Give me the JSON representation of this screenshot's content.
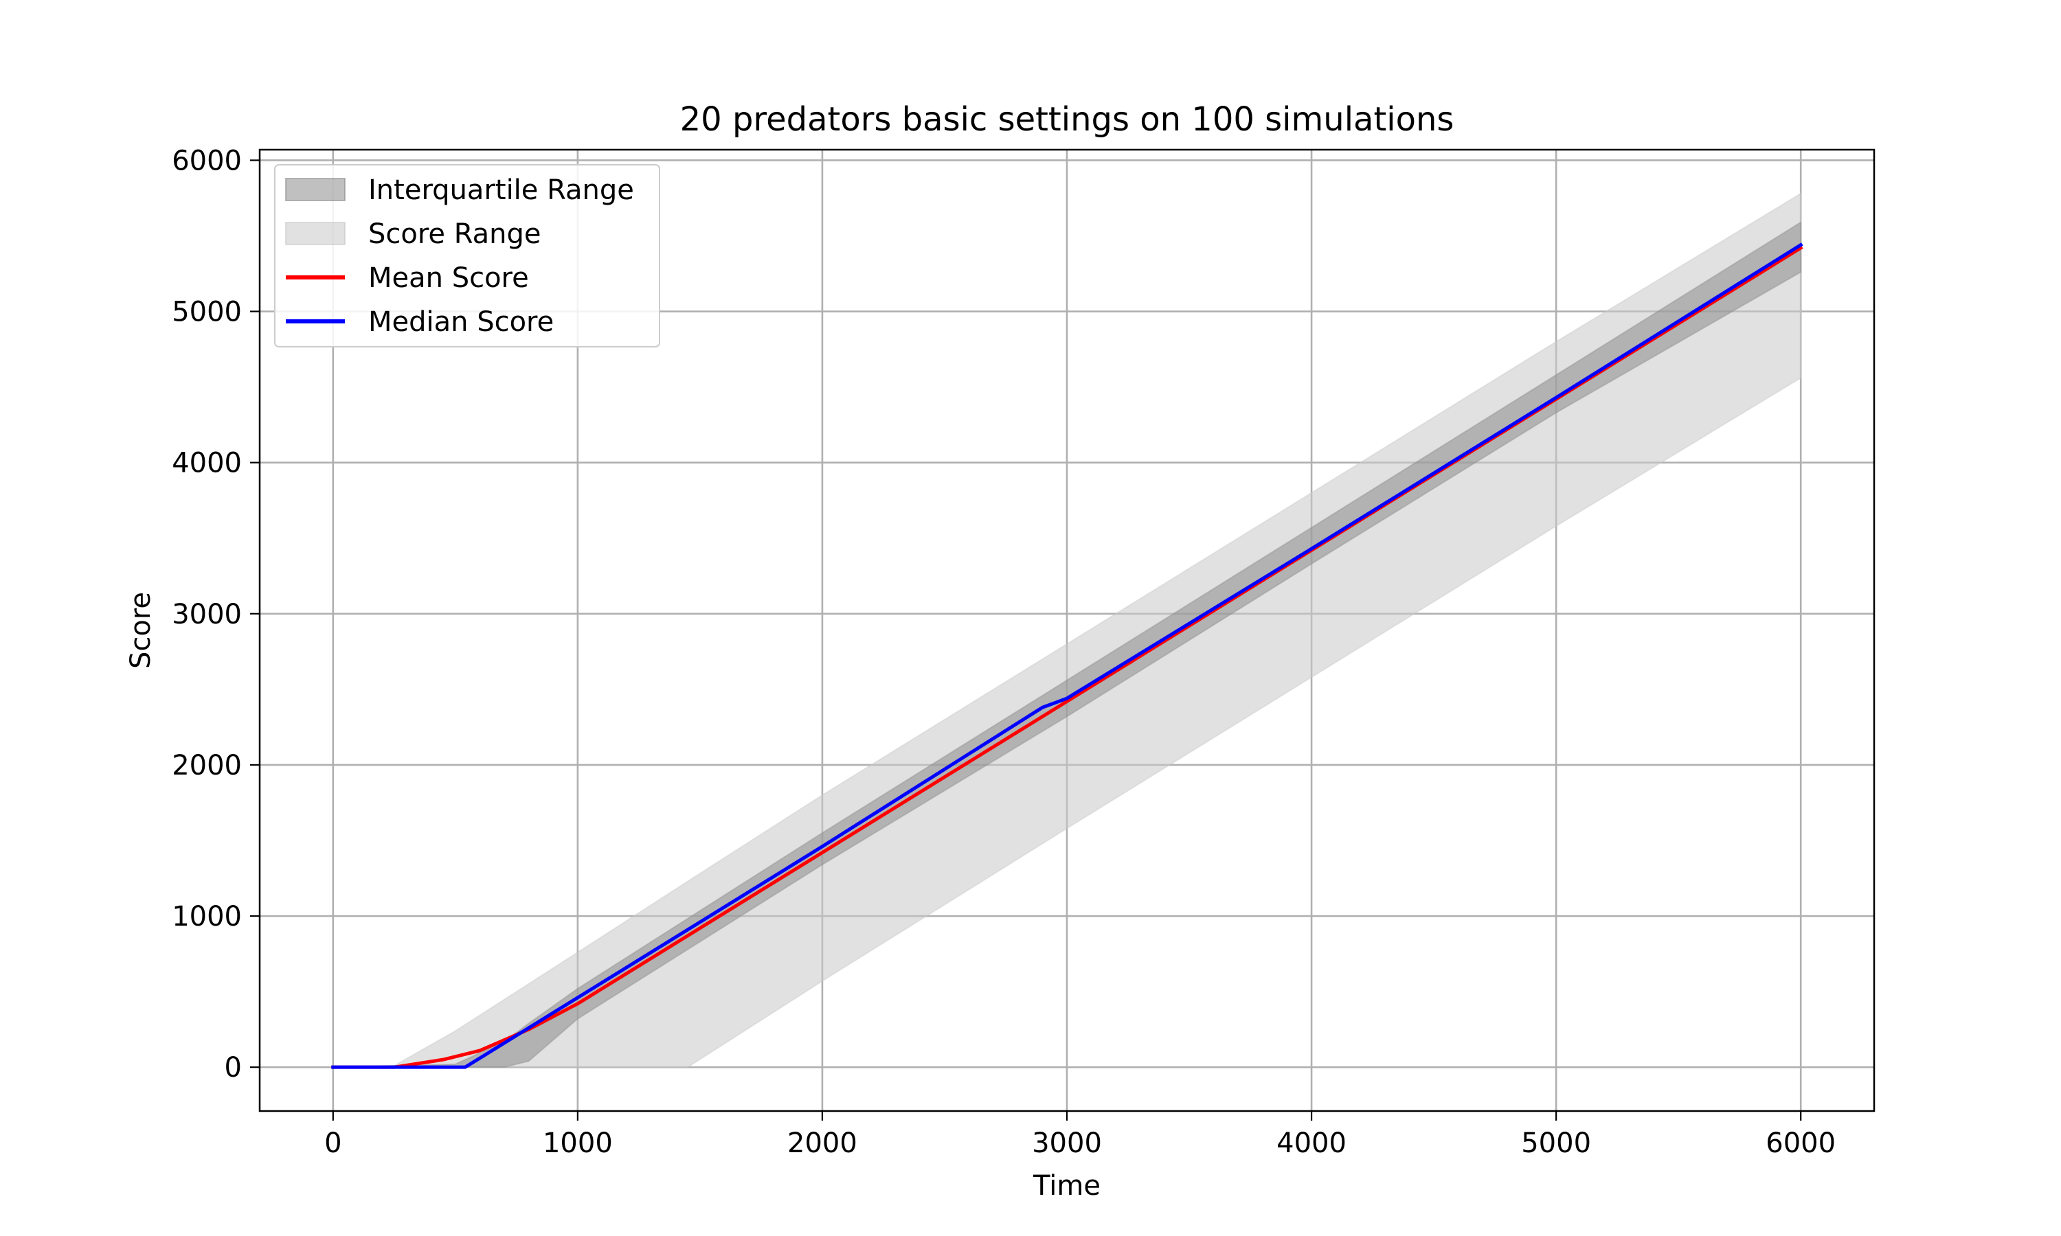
{
  "chart_data": {
    "type": "line",
    "title": "20 predators basic settings on 100 simulations",
    "xlabel": "Time",
    "ylabel": "Score",
    "xlim": [
      -300,
      6300
    ],
    "ylim": [
      -290,
      6070
    ],
    "xticks": [
      0,
      1000,
      2000,
      3000,
      4000,
      5000,
      6000
    ],
    "yticks": [
      0,
      1000,
      2000,
      3000,
      4000,
      5000,
      6000
    ],
    "grid": true,
    "legend_position": "upper-left",
    "bands": [
      {
        "name": "Score Range",
        "color": "#c8c8c8",
        "opacity": 0.55,
        "x": [
          0,
          250,
          250,
          500,
          1000,
          1450,
          2000,
          3000,
          4000,
          5000,
          6000
        ],
        "upper": [
          0,
          0,
          10,
          240,
          760,
          1230,
          1800,
          2800,
          3800,
          4800,
          5780
        ],
        "lower": [
          0,
          0,
          0,
          0,
          0,
          0,
          570,
          1580,
          2580,
          3580,
          4560
        ]
      },
      {
        "name": "Interquartile Range",
        "color": "#8c8c8c",
        "opacity": 0.55,
        "x": [
          0,
          500,
          700,
          800,
          1000,
          2000,
          3000,
          4000,
          5000,
          6000
        ],
        "upper": [
          0,
          20,
          170,
          290,
          520,
          1550,
          2560,
          3570,
          4580,
          5590
        ],
        "lower": [
          0,
          0,
          0,
          40,
          320,
          1340,
          2320,
          3330,
          4330,
          5260
        ]
      }
    ],
    "series": [
      {
        "name": "Mean Score",
        "color": "#ff0000",
        "x": [
          0,
          250,
          450,
          600,
          800,
          1000,
          2000,
          3000,
          4000,
          5000,
          6000
        ],
        "y": [
          0,
          0,
          50,
          110,
          250,
          420,
          1420,
          2420,
          3420,
          4420,
          5420
        ]
      },
      {
        "name": "Median Score",
        "color": "#0000ff",
        "x": [
          0,
          540,
          600,
          800,
          1000,
          2000,
          2900,
          2950,
          3000,
          4000,
          5000,
          6000
        ],
        "y": [
          0,
          0,
          60,
          260,
          460,
          1460,
          2380,
          2410,
          2440,
          3430,
          4430,
          5440
        ]
      }
    ]
  }
}
